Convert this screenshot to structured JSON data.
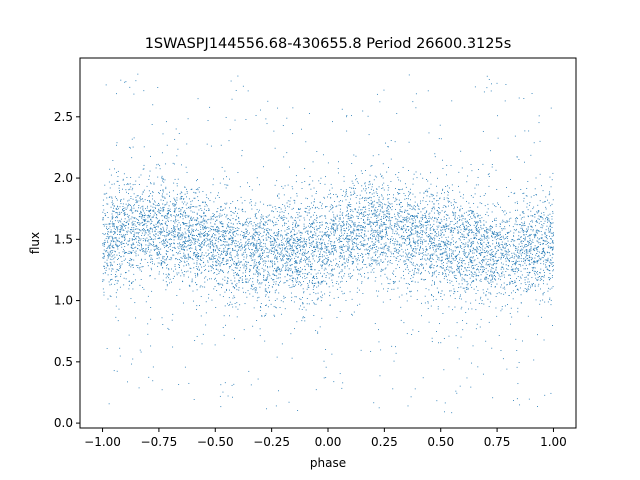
{
  "chart_data": {
    "type": "scatter",
    "title": "1SWASPJ144556.68-430655.8 Period 26600.3125s",
    "xlabel": "phase",
    "ylabel": "flux",
    "xlim": [
      -1.1,
      1.1
    ],
    "ylim": [
      -0.04,
      2.98
    ],
    "grid": false,
    "legend": "none",
    "x_ticks": [
      -1.0,
      -0.75,
      -0.5,
      -0.25,
      0.0,
      0.25,
      0.5,
      0.75,
      1.0
    ],
    "x_tick_labels": [
      "−1.00",
      "−0.75",
      "−0.50",
      "−0.25",
      "0.00",
      "0.25",
      "0.50",
      "0.75",
      "1.00"
    ],
    "y_ticks": [
      0.0,
      0.5,
      1.0,
      1.5,
      2.0,
      2.5
    ],
    "y_tick_labels": [
      "0.0",
      "0.5",
      "1.0",
      "1.5",
      "2.0",
      "2.5"
    ],
    "marker_color": "#1f77b4",
    "series": [
      {
        "x_range": [
          -1.0,
          1.0
        ],
        "typical_flux_band": [
          1.05,
          2.0
        ],
        "outlier_range": [
          0.08,
          2.85
        ],
        "binned_mean_flux": [
          {
            "phase": -1.0,
            "flux": 1.48
          },
          {
            "phase": -0.875,
            "flux": 1.57
          },
          {
            "phase": -0.8,
            "flux": 1.6
          },
          {
            "phase": -0.75,
            "flux": 1.58
          },
          {
            "phase": -0.625,
            "flux": 1.53
          },
          {
            "phase": -0.5,
            "flux": 1.47
          },
          {
            "phase": -0.375,
            "flux": 1.43
          },
          {
            "phase": -0.25,
            "flux": 1.4
          },
          {
            "phase": -0.125,
            "flux": 1.4
          },
          {
            "phase": 0.0,
            "flux": 1.48
          },
          {
            "phase": 0.125,
            "flux": 1.57
          },
          {
            "phase": 0.2,
            "flux": 1.6
          },
          {
            "phase": 0.25,
            "flux": 1.58
          },
          {
            "phase": 0.375,
            "flux": 1.53
          },
          {
            "phase": 0.5,
            "flux": 1.47
          },
          {
            "phase": 0.625,
            "flux": 1.43
          },
          {
            "phase": 0.75,
            "flux": 1.4
          },
          {
            "phase": 0.875,
            "flux": 1.4
          },
          {
            "phase": 1.0,
            "flux": 1.48
          }
        ]
      }
    ]
  }
}
